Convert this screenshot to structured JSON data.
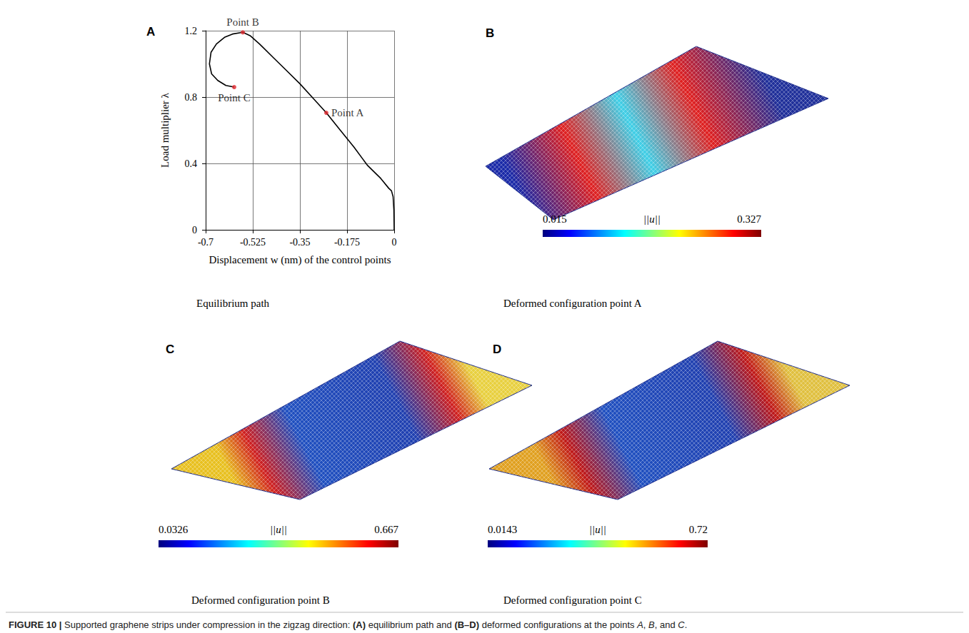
{
  "chart_data": {
    "type": "line",
    "panel_label": "A",
    "title": "Equilibrium path",
    "x_label": "Displacement w (nm) of the control points",
    "y_label": "Load multiplier λ",
    "x": [
      0,
      -0.001,
      -0.004,
      -0.01,
      -0.02,
      -0.05,
      -0.1,
      -0.15,
      -0.2,
      -0.252,
      -0.305,
      -0.35,
      -0.4,
      -0.45,
      -0.5,
      -0.535,
      -0.562,
      -0.6,
      -0.63,
      -0.66,
      -0.68,
      -0.686,
      -0.678,
      -0.655,
      -0.625,
      -0.594
    ],
    "series": [
      {
        "name": "Equilibrium path",
        "color": "#000000",
        "values": [
          0,
          0.12,
          0.2,
          0.235,
          0.25,
          0.31,
          0.39,
          0.5,
          0.6,
          0.705,
          0.8,
          0.88,
          0.96,
          1.04,
          1.12,
          1.17,
          1.19,
          1.18,
          1.16,
          1.12,
          1.07,
          1.0,
          0.94,
          0.9,
          0.87,
          0.86
        ]
      }
    ],
    "xlim": [
      -0.7,
      0
    ],
    "xticks": [
      -0.7,
      -0.525,
      -0.35,
      -0.175,
      0
    ],
    "ylim": [
      0,
      1.2
    ],
    "yticks": [
      0,
      0.4,
      0.8,
      1.2
    ],
    "grid": true,
    "annotations": [
      {
        "text": "Point A",
        "x": -0.252,
        "y": 0.705,
        "color": "#e0282e"
      },
      {
        "text": "Point B",
        "x": -0.562,
        "y": 1.19,
        "color": "#e0282e"
      },
      {
        "text": "Point C",
        "x": -0.594,
        "y": 0.86,
        "color": "#e0282e"
      }
    ]
  },
  "panels": [
    {
      "label": "B",
      "title": "Deformed configuration point A",
      "colorbar": {
        "title": "||u||",
        "range": [
          0.015,
          0.327
        ]
      }
    },
    {
      "label": "C",
      "title": "Deformed configuration point B",
      "colorbar": {
        "title": "||u||",
        "range": [
          0.0326,
          0.667
        ]
      }
    },
    {
      "label": "D",
      "title": "Deformed configuration point C",
      "colorbar": {
        "title": "||u||",
        "range": [
          0.0143,
          0.72
        ]
      }
    }
  ],
  "caption": [
    {
      "text": "FIGURE 10 |",
      "style": "bold"
    },
    {
      "text": " Supported graphene strips under compression in the zigzag direction: ",
      "style": "normal"
    },
    {
      "text": "(A)",
      "style": "bold"
    },
    {
      "text": " equilibrium path and ",
      "style": "normal"
    },
    {
      "text": "(B–D)",
      "style": "bold"
    },
    {
      "text": " deformed configurations at the points ",
      "style": "normal"
    },
    {
      "text": "A",
      "style": "italic"
    },
    {
      "text": ", ",
      "style": "normal"
    },
    {
      "text": "B",
      "style": "italic"
    },
    {
      "text": ", and ",
      "style": "normal"
    },
    {
      "text": "C",
      "style": "italic"
    },
    {
      "text": ".",
      "style": "normal"
    }
  ]
}
